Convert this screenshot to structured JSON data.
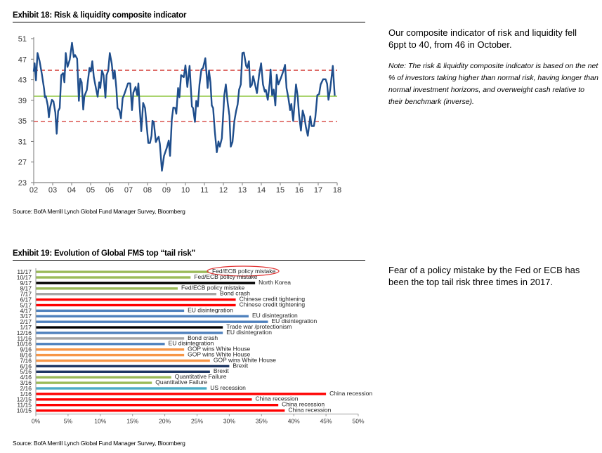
{
  "exhibit18": {
    "title": "Exhibit 18: Risk & liquidity composite indicator",
    "source": "Source: BofA Merrill Lynch Global Fund Manager Survey, Bloomberg",
    "commentary": "Our composite indicator of risk and liquidity fell 6ppt to 40, from 46 in October.",
    "note": "Note: The risk & liquidity composite indicator is based on the net % of investors taking higher than normal risk, having longer than normal investment horizons, and overweight cash relative to their benchmark (inverse)."
  },
  "exhibit19": {
    "title": "Exhibit 19: Evolution of Global FMS top “tail risk”",
    "source": "Source: BofA Merrill Lynch Global Fund Manager Survey, Bloomberg",
    "commentary": "Fear of a policy mistake by the Fed or ECB has been the top tail risk three times in 2017."
  },
  "colors": {
    "line": "#1f4e8c",
    "average": "#8dc63f",
    "band": "#d9534f",
    "green": "#9bbb59",
    "black": "#000000",
    "grey": "#a6a6a6",
    "red": "#ff0000",
    "blue": "#4f81bd",
    "orange": "#f79646",
    "navy": "#1f3864",
    "lightblue": "#4bacc6",
    "highlight": "#e03030"
  },
  "chart_data": [
    {
      "type": "line",
      "title": "Exhibit 18: Risk & liquidity composite indicator",
      "xlabel": "",
      "ylabel": "",
      "xlim": [
        2002,
        2018
      ],
      "ylim": [
        23,
        51
      ],
      "x_ticks": [
        "02",
        "03",
        "04",
        "05",
        "06",
        "07",
        "08",
        "09",
        "10",
        "11",
        "12",
        "13",
        "14",
        "15",
        "16",
        "17",
        "18"
      ],
      "y_ticks": [
        23,
        27,
        31,
        35,
        39,
        43,
        47,
        51
      ],
      "reference_lines": [
        {
          "name": "average",
          "value": 39.8,
          "style": "solid",
          "color": "average"
        },
        {
          "name": "upper band",
          "value": 44.85,
          "style": "dashed",
          "color": "band"
        },
        {
          "name": "lower band",
          "value": 34.9,
          "style": "dashed",
          "color": "band"
        }
      ],
      "series": [
        {
          "name": "Risk & liquidity composite indicator",
          "points": [
            [
              2002.0,
              44.6
            ],
            [
              2002.05,
              46.2
            ],
            [
              2002.12,
              42.9
            ],
            [
              2002.2,
              48.2
            ],
            [
              2002.31,
              46.6
            ],
            [
              2002.43,
              44.1
            ],
            [
              2002.55,
              41.2
            ],
            [
              2002.59,
              39.6
            ],
            [
              2002.64,
              39.8
            ],
            [
              2002.74,
              38.0
            ],
            [
              2002.8,
              35.7
            ],
            [
              2002.86,
              37.5
            ],
            [
              2002.96,
              39.1
            ],
            [
              2003.04,
              38.8
            ],
            [
              2003.14,
              36.6
            ],
            [
              2003.21,
              32.5
            ],
            [
              2003.29,
              36.9
            ],
            [
              2003.37,
              37.5
            ],
            [
              2003.45,
              43.9
            ],
            [
              2003.55,
              44.3
            ],
            [
              2003.62,
              42.5
            ],
            [
              2003.69,
              48.2
            ],
            [
              2003.78,
              45.5
            ],
            [
              2003.9,
              46.9
            ],
            [
              2004.02,
              50.2
            ],
            [
              2004.11,
              47.4
            ],
            [
              2004.18,
              47.8
            ],
            [
              2004.29,
              47.1
            ],
            [
              2004.38,
              38.9
            ],
            [
              2004.45,
              43.2
            ],
            [
              2004.53,
              42.5
            ],
            [
              2004.61,
              37.2
            ],
            [
              2004.67,
              39.8
            ],
            [
              2004.8,
              41.0
            ],
            [
              2004.94,
              45.3
            ],
            [
              2005.01,
              44.6
            ],
            [
              2005.09,
              46.6
            ],
            [
              2005.17,
              43.5
            ],
            [
              2005.29,
              41.2
            ],
            [
              2005.37,
              39.7
            ],
            [
              2005.45,
              42.5
            ],
            [
              2005.51,
              41.4
            ],
            [
              2005.6,
              44.8
            ],
            [
              2005.68,
              43.9
            ],
            [
              2005.78,
              39.5
            ],
            [
              2005.84,
              43.9
            ],
            [
              2005.93,
              44.8
            ],
            [
              2006.01,
              48.2
            ],
            [
              2006.11,
              46.2
            ],
            [
              2006.2,
              43.2
            ],
            [
              2006.27,
              44.8
            ],
            [
              2006.36,
              41.2
            ],
            [
              2006.42,
              37.5
            ],
            [
              2006.52,
              37.1
            ],
            [
              2006.6,
              35.5
            ],
            [
              2006.69,
              39.4
            ],
            [
              2006.79,
              40.3
            ],
            [
              2006.97,
              42.3
            ],
            [
              2007.09,
              42.3
            ],
            [
              2007.18,
              37.1
            ],
            [
              2007.25,
              40.5
            ],
            [
              2007.37,
              41.6
            ],
            [
              2007.46,
              40.0
            ],
            [
              2007.52,
              42.3
            ],
            [
              2007.58,
              38.0
            ],
            [
              2007.67,
              33.0
            ],
            [
              2007.77,
              38.5
            ],
            [
              2007.87,
              37.5
            ],
            [
              2008.04,
              30.7
            ],
            [
              2008.13,
              30.7
            ],
            [
              2008.21,
              32.1
            ],
            [
              2008.26,
              35.0
            ],
            [
              2008.33,
              34.8
            ],
            [
              2008.44,
              30.9
            ],
            [
              2008.53,
              31.6
            ],
            [
              2008.59,
              31.9
            ],
            [
              2008.65,
              30.5
            ],
            [
              2008.76,
              25.3
            ],
            [
              2008.87,
              28.2
            ],
            [
              2009.02,
              29.8
            ],
            [
              2009.12,
              31.2
            ],
            [
              2009.19,
              28.2
            ],
            [
              2009.28,
              35.3
            ],
            [
              2009.36,
              37.6
            ],
            [
              2009.46,
              37.5
            ],
            [
              2009.52,
              36.4
            ],
            [
              2009.61,
              41.4
            ],
            [
              2009.68,
              39.6
            ],
            [
              2009.77,
              43.9
            ],
            [
              2009.91,
              43.5
            ],
            [
              2010.0,
              45.8
            ],
            [
              2010.1,
              41.6
            ],
            [
              2010.22,
              45.7
            ],
            [
              2010.34,
              37.8
            ],
            [
              2010.4,
              37.5
            ],
            [
              2010.5,
              34.8
            ],
            [
              2010.57,
              38.9
            ],
            [
              2010.65,
              37.8
            ],
            [
              2010.74,
              42.1
            ],
            [
              2010.84,
              45.0
            ],
            [
              2010.93,
              45.3
            ],
            [
              2011.05,
              47.2
            ],
            [
              2011.17,
              41.4
            ],
            [
              2011.24,
              44.8
            ],
            [
              2011.32,
              42.5
            ],
            [
              2011.39,
              38.0
            ],
            [
              2011.46,
              37.5
            ],
            [
              2011.55,
              33.0
            ],
            [
              2011.65,
              28.9
            ],
            [
              2011.74,
              31.0
            ],
            [
              2011.81,
              30.0
            ],
            [
              2011.92,
              31.6
            ],
            [
              2012.05,
              40.0
            ],
            [
              2012.13,
              42.1
            ],
            [
              2012.23,
              38.5
            ],
            [
              2012.32,
              36.0
            ],
            [
              2012.39,
              30.0
            ],
            [
              2012.48,
              30.9
            ],
            [
              2012.58,
              35.0
            ],
            [
              2012.67,
              36.9
            ],
            [
              2012.75,
              38.2
            ],
            [
              2012.83,
              41.1
            ],
            [
              2012.92,
              42.1
            ],
            [
              2013.0,
              48.2
            ],
            [
              2013.08,
              48.3
            ],
            [
              2013.2,
              45.7
            ],
            [
              2013.26,
              45.3
            ],
            [
              2013.35,
              46.6
            ],
            [
              2013.42,
              41.6
            ],
            [
              2013.5,
              42.0
            ],
            [
              2013.57,
              43.7
            ],
            [
              2013.67,
              42.1
            ],
            [
              2013.77,
              40.4
            ],
            [
              2013.88,
              43.9
            ],
            [
              2013.99,
              46.2
            ],
            [
              2014.09,
              42.1
            ],
            [
              2014.18,
              40.7
            ],
            [
              2014.24,
              41.0
            ],
            [
              2014.34,
              39.1
            ],
            [
              2014.44,
              42.3
            ],
            [
              2014.49,
              45.0
            ],
            [
              2014.57,
              40.0
            ],
            [
              2014.65,
              41.1
            ],
            [
              2014.74,
              38.0
            ],
            [
              2014.81,
              44.0
            ],
            [
              2014.9,
              42.1
            ],
            [
              2015.02,
              43.2
            ],
            [
              2015.15,
              44.6
            ],
            [
              2015.25,
              45.9
            ],
            [
              2015.33,
              41.4
            ],
            [
              2015.43,
              39.4
            ],
            [
              2015.52,
              37.1
            ],
            [
              2015.58,
              38.3
            ],
            [
              2015.68,
              35.0
            ],
            [
              2015.83,
              42.1
            ],
            [
              2015.92,
              39.8
            ],
            [
              2015.99,
              36.2
            ],
            [
              2016.09,
              33.1
            ],
            [
              2016.18,
              37.0
            ],
            [
              2016.27,
              35.8
            ],
            [
              2016.35,
              33.9
            ],
            [
              2016.45,
              32.1
            ],
            [
              2016.58,
              35.9
            ],
            [
              2016.65,
              34.0
            ],
            [
              2016.77,
              34.0
            ],
            [
              2016.85,
              35.7
            ],
            [
              2016.95,
              40.0
            ],
            [
              2017.05,
              40.2
            ],
            [
              2017.13,
              42.1
            ],
            [
              2017.26,
              43.1
            ],
            [
              2017.39,
              43.1
            ],
            [
              2017.47,
              42.2
            ],
            [
              2017.54,
              39.1
            ],
            [
              2017.63,
              41.1
            ],
            [
              2017.77,
              45.7
            ],
            [
              2017.87,
              39.9
            ]
          ]
        }
      ]
    },
    {
      "type": "bar",
      "orientation": "horizontal",
      "title": "Exhibit 19: Evolution of Global FMS top “tail risk”",
      "xlim": [
        0,
        50
      ],
      "x_ticks": [
        "0%",
        "5%",
        "10%",
        "15%",
        "20%",
        "25%",
        "30%",
        "35%",
        "40%",
        "45%",
        "50%"
      ],
      "highlighted": "11/17",
      "bars": [
        {
          "date": "11/17",
          "risk": "Fed/ECB policy mistake",
          "value": 26.8,
          "color": "green"
        },
        {
          "date": "10/17",
          "risk": "Fed/ECB policy mistake",
          "value": 24,
          "color": "green"
        },
        {
          "date": "9/17",
          "risk": "North Korea",
          "value": 34,
          "color": "black"
        },
        {
          "date": "8/17",
          "risk": "Fed/ECB policy mistake",
          "value": 22,
          "color": "green"
        },
        {
          "date": "7/17",
          "risk": "Bond crash",
          "value": 28,
          "color": "grey"
        },
        {
          "date": "6/17",
          "risk": "Chinese credit tightening",
          "value": 31,
          "color": "red"
        },
        {
          "date": "5/17",
          "risk": "Chinese credit tightening",
          "value": 31,
          "color": "red"
        },
        {
          "date": "4/17",
          "risk": "EU disintegration",
          "value": 23,
          "color": "blue"
        },
        {
          "date": "3/17",
          "risk": "EU disintegration",
          "value": 33,
          "color": "blue"
        },
        {
          "date": "2/17",
          "risk": "EU disintegration",
          "value": 36,
          "color": "blue"
        },
        {
          "date": "1/17",
          "risk": "Trade war /protectionism",
          "value": 29,
          "color": "black"
        },
        {
          "date": "12/16",
          "risk": "EU disintegration",
          "value": 29,
          "color": "blue"
        },
        {
          "date": "11/16",
          "risk": "Bond crash",
          "value": 23,
          "color": "grey"
        },
        {
          "date": "10/16",
          "risk": "EU disintegration",
          "value": 20,
          "color": "blue"
        },
        {
          "date": "9/16",
          "risk": "GOP wins White House",
          "value": 23,
          "color": "orange"
        },
        {
          "date": "8/16",
          "risk": "GOP wins White House",
          "value": 23,
          "color": "orange"
        },
        {
          "date": "7/16",
          "risk": "GOP wins White House",
          "value": 27,
          "color": "orange"
        },
        {
          "date": "6/16",
          "risk": "Brexit",
          "value": 30,
          "color": "navy"
        },
        {
          "date": "5/16",
          "risk": "Brexit",
          "value": 27,
          "color": "navy"
        },
        {
          "date": "4/16",
          "risk": "Quantitative  Failure",
          "value": 21,
          "color": "green"
        },
        {
          "date": "3/16",
          "risk": "Quantitative  Failure",
          "value": 18,
          "color": "green"
        },
        {
          "date": "2/16",
          "risk": "US recession",
          "value": 26.5,
          "color": "lightblue"
        },
        {
          "date": "1/16",
          "risk": "China recession",
          "value": 45,
          "color": "red"
        },
        {
          "date": "12/15",
          "risk": "China recession",
          "value": 33.5,
          "color": "red"
        },
        {
          "date": "11/15",
          "risk": "China recession",
          "value": 37.6,
          "color": "red"
        },
        {
          "date": "10/15",
          "risk": "China recession",
          "value": 38.6,
          "color": "red"
        }
      ]
    }
  ]
}
